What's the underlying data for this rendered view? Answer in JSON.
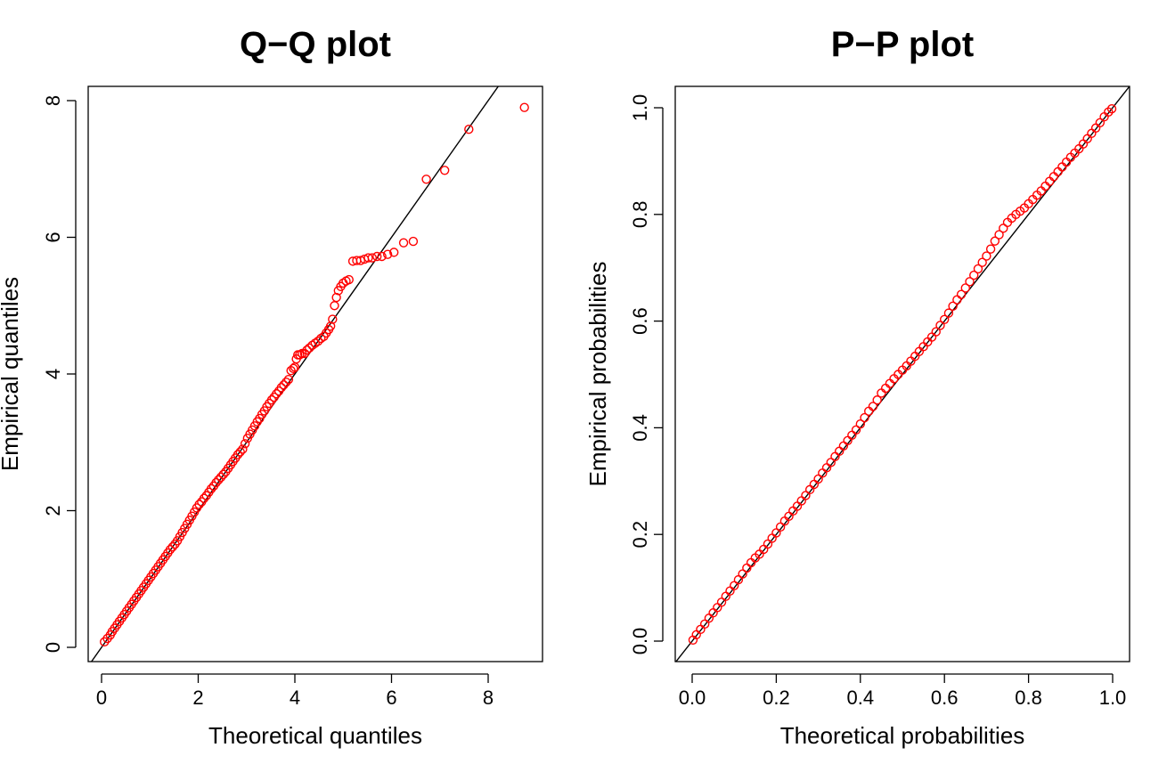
{
  "colors": {
    "points": "#ff0000",
    "line": "#000000",
    "background": "#ffffff"
  },
  "chart_data": [
    {
      "type": "scatter",
      "title": "Q−Q plot",
      "xlabel": "Theoretical quantiles",
      "ylabel": "Empirical quantiles",
      "xlim": [
        0,
        9
      ],
      "ylim": [
        0,
        8
      ],
      "xticks": [
        0,
        2,
        4,
        6,
        8
      ],
      "yticks": [
        0,
        2,
        4,
        6,
        8
      ],
      "xtick_labels": [
        "0",
        "2",
        "4",
        "6",
        "8"
      ],
      "ytick_labels": [
        "0",
        "2",
        "4",
        "6",
        "8"
      ],
      "grid": false,
      "reference_line": {
        "intercept": 0,
        "slope": 1
      },
      "series": [
        {
          "x": [
            0.06,
            0.12,
            0.18,
            0.22,
            0.27,
            0.32,
            0.37,
            0.42,
            0.47,
            0.52,
            0.57,
            0.62,
            0.67,
            0.72,
            0.77,
            0.82,
            0.87,
            0.92,
            0.97,
            1.02,
            1.07,
            1.12,
            1.17,
            1.22,
            1.27,
            1.32,
            1.37,
            1.42,
            1.47,
            1.52,
            1.57,
            1.62,
            1.67,
            1.72,
            1.77,
            1.82,
            1.87,
            1.92,
            1.97,
            2.02,
            2.07,
            2.12,
            2.17,
            2.22,
            2.27,
            2.32,
            2.37,
            2.42,
            2.47,
            2.52,
            2.57,
            2.62,
            2.67,
            2.72,
            2.77,
            2.82,
            2.87,
            2.92,
            2.97,
            3.02,
            3.07,
            3.12,
            3.17,
            3.22,
            3.27,
            3.32,
            3.37,
            3.42,
            3.47,
            3.52,
            3.57,
            3.62,
            3.67,
            3.72,
            3.77,
            3.82,
            3.87,
            3.92,
            3.97,
            4.0,
            4.03,
            4.06,
            4.1,
            4.15,
            4.2,
            4.25,
            4.3,
            4.36,
            4.42,
            4.48,
            4.54,
            4.6,
            4.65,
            4.7,
            4.74,
            4.78,
            4.82,
            4.86,
            4.9,
            4.95,
            5.0,
            5.06,
            5.12,
            5.2,
            5.28,
            5.36,
            5.44,
            5.52,
            5.6,
            5.7,
            5.8,
            5.92,
            6.05,
            6.25,
            6.45,
            6.72,
            7.1,
            7.6,
            8.75
          ],
          "y": [
            0.08,
            0.13,
            0.18,
            0.23,
            0.28,
            0.33,
            0.38,
            0.43,
            0.48,
            0.53,
            0.58,
            0.63,
            0.68,
            0.73,
            0.78,
            0.83,
            0.88,
            0.93,
            0.98,
            1.03,
            1.08,
            1.13,
            1.18,
            1.23,
            1.28,
            1.33,
            1.38,
            1.43,
            1.47,
            1.51,
            1.56,
            1.62,
            1.68,
            1.74,
            1.8,
            1.86,
            1.92,
            1.98,
            2.04,
            2.09,
            2.13,
            2.18,
            2.22,
            2.27,
            2.32,
            2.36,
            2.41,
            2.45,
            2.49,
            2.53,
            2.57,
            2.62,
            2.67,
            2.72,
            2.77,
            2.82,
            2.86,
            2.9,
            2.98,
            3.06,
            3.12,
            3.18,
            3.24,
            3.3,
            3.35,
            3.41,
            3.46,
            3.52,
            3.57,
            3.62,
            3.66,
            3.71,
            3.75,
            3.8,
            3.84,
            3.88,
            3.92,
            4.05,
            4.08,
            4.1,
            4.22,
            4.28,
            4.28,
            4.3,
            4.3,
            4.35,
            4.38,
            4.42,
            4.45,
            4.48,
            4.52,
            4.55,
            4.6,
            4.65,
            4.7,
            4.8,
            5.0,
            5.12,
            5.22,
            5.28,
            5.33,
            5.36,
            5.38,
            5.65,
            5.66,
            5.66,
            5.68,
            5.7,
            5.7,
            5.72,
            5.72,
            5.75,
            5.78,
            5.92,
            5.94,
            6.85,
            6.98,
            7.58,
            7.9
          ]
        }
      ]
    },
    {
      "type": "scatter",
      "title": "P−P plot",
      "xlabel": "Theoretical probabilities",
      "ylabel": "Empirical probabilities",
      "xlim": [
        0,
        1
      ],
      "ylim": [
        0,
        1
      ],
      "xticks": [
        0,
        0.2,
        0.4,
        0.6,
        0.8,
        1
      ],
      "yticks": [
        0,
        0.2,
        0.4,
        0.6,
        0.8,
        1
      ],
      "xtick_labels": [
        "0.0",
        "0.2",
        "0.4",
        "0.6",
        "0.8",
        "1.0"
      ],
      "ytick_labels": [
        "0.0",
        "0.2",
        "0.4",
        "0.6",
        "0.8",
        "1.0"
      ],
      "grid": false,
      "reference_line": {
        "intercept": 0,
        "slope": 1
      },
      "series": [
        {
          "x": [
            0.002,
            0.01,
            0.02,
            0.03,
            0.04,
            0.05,
            0.06,
            0.07,
            0.08,
            0.09,
            0.1,
            0.11,
            0.12,
            0.13,
            0.14,
            0.15,
            0.16,
            0.17,
            0.18,
            0.19,
            0.2,
            0.21,
            0.22,
            0.23,
            0.24,
            0.25,
            0.26,
            0.27,
            0.28,
            0.29,
            0.3,
            0.31,
            0.32,
            0.33,
            0.34,
            0.35,
            0.36,
            0.37,
            0.38,
            0.39,
            0.4,
            0.41,
            0.42,
            0.43,
            0.44,
            0.45,
            0.46,
            0.47,
            0.48,
            0.49,
            0.5,
            0.51,
            0.52,
            0.53,
            0.54,
            0.55,
            0.56,
            0.57,
            0.58,
            0.59,
            0.6,
            0.61,
            0.62,
            0.63,
            0.64,
            0.65,
            0.66,
            0.67,
            0.68,
            0.69,
            0.7,
            0.71,
            0.72,
            0.73,
            0.74,
            0.75,
            0.76,
            0.77,
            0.78,
            0.79,
            0.8,
            0.81,
            0.82,
            0.83,
            0.84,
            0.85,
            0.86,
            0.87,
            0.88,
            0.89,
            0.9,
            0.91,
            0.92,
            0.93,
            0.94,
            0.95,
            0.96,
            0.97,
            0.98,
            0.99,
            0.998
          ],
          "y": [
            0.002,
            0.012,
            0.022,
            0.032,
            0.043,
            0.053,
            0.063,
            0.073,
            0.084,
            0.094,
            0.104,
            0.115,
            0.126,
            0.137,
            0.147,
            0.156,
            0.163,
            0.172,
            0.182,
            0.193,
            0.203,
            0.214,
            0.225,
            0.234,
            0.244,
            0.253,
            0.263,
            0.273,
            0.284,
            0.294,
            0.304,
            0.315,
            0.325,
            0.335,
            0.346,
            0.356,
            0.366,
            0.376,
            0.386,
            0.396,
            0.407,
            0.419,
            0.431,
            0.44,
            0.452,
            0.465,
            0.474,
            0.483,
            0.492,
            0.5,
            0.508,
            0.516,
            0.525,
            0.534,
            0.543,
            0.552,
            0.561,
            0.57,
            0.58,
            0.592,
            0.603,
            0.615,
            0.628,
            0.64,
            0.65,
            0.662,
            0.674,
            0.686,
            0.698,
            0.71,
            0.722,
            0.735,
            0.75,
            0.762,
            0.774,
            0.785,
            0.793,
            0.8,
            0.806,
            0.812,
            0.82,
            0.828,
            0.836,
            0.844,
            0.853,
            0.862,
            0.871,
            0.88,
            0.889,
            0.898,
            0.907,
            0.915,
            0.923,
            0.932,
            0.942,
            0.952,
            0.962,
            0.972,
            0.983,
            0.992,
            0.998
          ]
        }
      ]
    }
  ]
}
